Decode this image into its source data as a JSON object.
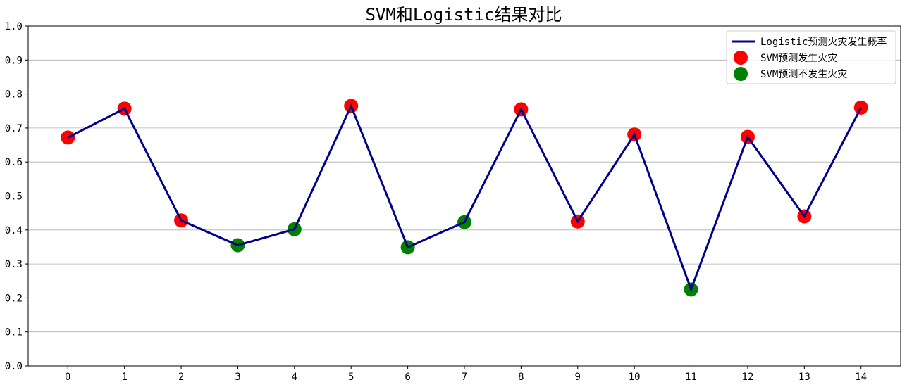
{
  "chart_data": {
    "type": "line",
    "title": "SVM和Logistic结果对比",
    "xlabel": "",
    "ylabel": "",
    "x": [
      0,
      1,
      2,
      3,
      4,
      5,
      6,
      7,
      8,
      9,
      10,
      11,
      12,
      13,
      14
    ],
    "xlim": [
      -0.7,
      14.7
    ],
    "ylim": [
      0.0,
      1.0
    ],
    "yticks": [
      0.0,
      0.1,
      0.2,
      0.3,
      0.4,
      0.5,
      0.6,
      0.7,
      0.8,
      0.9,
      1.0
    ],
    "ytick_labels": [
      "0.0",
      "0.1",
      "0.2",
      "0.3",
      "0.4",
      "0.5",
      "0.6",
      "0.7",
      "0.8",
      "0.9",
      "1.0"
    ],
    "xtick_labels": [
      "0",
      "1",
      "2",
      "3",
      "4",
      "5",
      "6",
      "7",
      "8",
      "9",
      "10",
      "11",
      "12",
      "13",
      "14"
    ],
    "grid": "horizontal",
    "legend_position": "top-right",
    "series": [
      {
        "name": "Logistic预测火灾发生概率",
        "kind": "line",
        "color": "#00008b",
        "values": [
          0.672,
          0.757,
          0.428,
          0.355,
          0.402,
          0.765,
          0.349,
          0.423,
          0.755,
          0.425,
          0.681,
          0.225,
          0.674,
          0.44,
          0.76
        ]
      },
      {
        "name": "SVM预测发生火灾",
        "kind": "scatter",
        "color": "#ff0000",
        "x": [
          0,
          1,
          2,
          5,
          8,
          9,
          10,
          12,
          13,
          14
        ],
        "values": [
          0.672,
          0.757,
          0.428,
          0.765,
          0.755,
          0.425,
          0.681,
          0.674,
          0.44,
          0.76
        ]
      },
      {
        "name": "SVM预测不发生火灾",
        "kind": "scatter",
        "color": "#008000",
        "x": [
          3,
          4,
          6,
          7,
          11
        ],
        "values": [
          0.355,
          0.402,
          0.349,
          0.423,
          0.225
        ]
      }
    ]
  }
}
